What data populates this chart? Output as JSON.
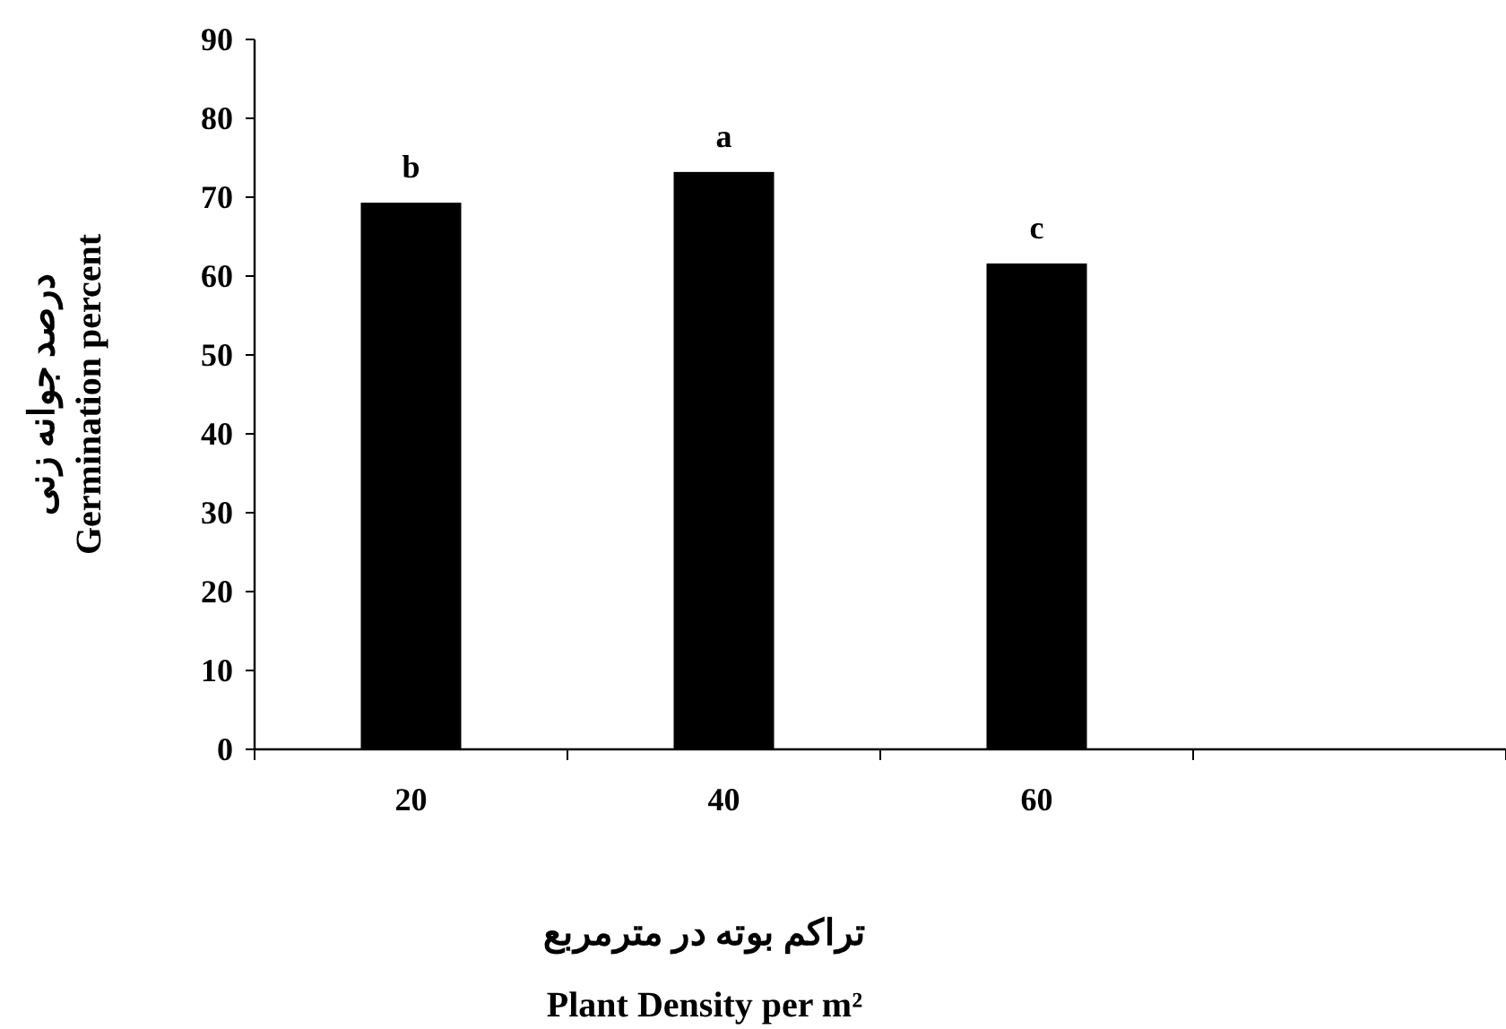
{
  "chart_data": {
    "type": "bar",
    "xlabel": "تراکم بوته در مترمربع\nPlant Density per m²",
    "ylabel": "درصد جوانه زنی\nGermination percent",
    "categories": [
      "20",
      "40",
      "60",
      null
    ],
    "values": [
      69.3,
      73.2,
      61.6,
      null
    ],
    "color": "#000000",
    "ylim": [
      0,
      90
    ],
    "yticks": [
      0,
      10,
      20,
      30,
      40,
      50,
      60,
      70,
      80,
      90
    ],
    "annotations": [
      "b",
      "a",
      "c"
    ]
  }
}
